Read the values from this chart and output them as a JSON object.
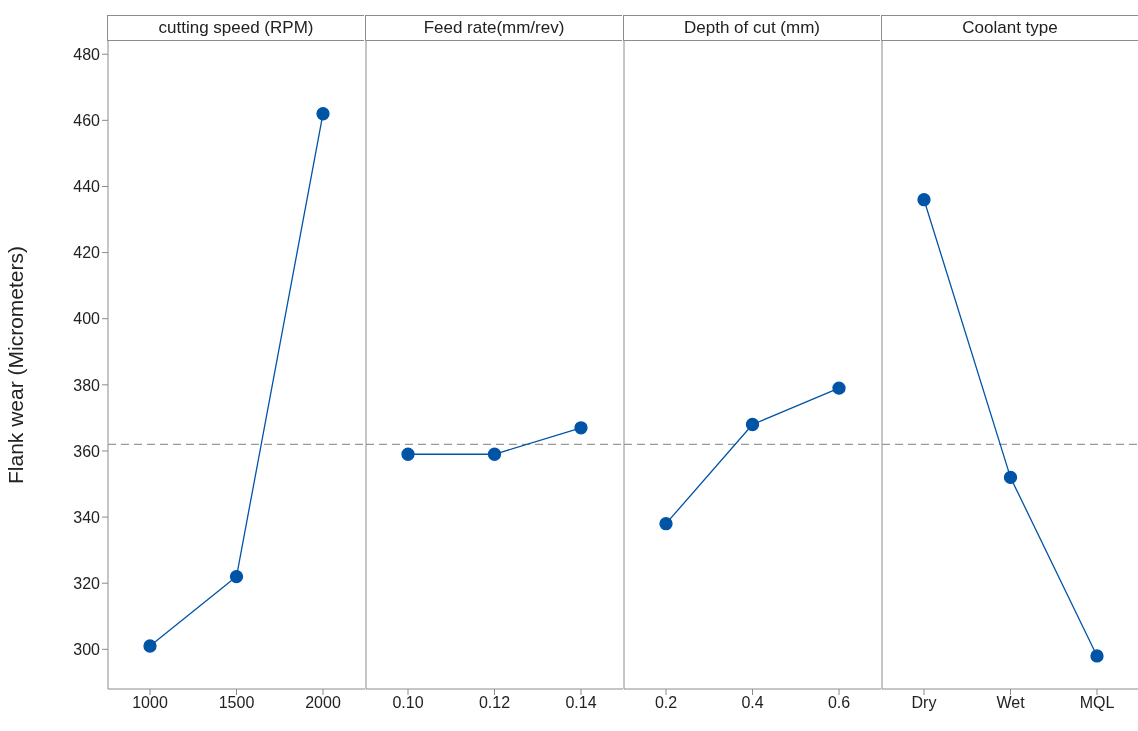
{
  "chart_data": [
    {
      "type": "line",
      "title": "cutting speed (RPM)",
      "ylabel": "Flank wear (Micrometers)",
      "categories": [
        "1000",
        "1500",
        "2000"
      ],
      "values": [
        301,
        322,
        462
      ],
      "color": "#0054a6",
      "ylim": [
        288,
        484
      ],
      "yticks": [
        300,
        320,
        340,
        360,
        380,
        400,
        420,
        440,
        460,
        480
      ],
      "ref_lines": [
        {
          "axis": "y",
          "value": 362,
          "color": "#999999",
          "line_style": "dashed"
        }
      ],
      "marker": "circle",
      "line_style": "solid"
    },
    {
      "type": "line",
      "title": "Feed rate(mm/rev)",
      "categories": [
        "0.10",
        "0.12",
        "0.14"
      ],
      "values": [
        359,
        359,
        367
      ],
      "color": "#0054a6",
      "ylim": [
        288,
        484
      ],
      "yticks": [
        300,
        320,
        340,
        360,
        380,
        400,
        420,
        440,
        460,
        480
      ],
      "ref_lines": [
        {
          "axis": "y",
          "value": 362,
          "color": "#999999",
          "line_style": "dashed"
        }
      ],
      "marker": "circle",
      "line_style": "solid",
      "tick_labels": "x"
    },
    {
      "type": "line",
      "title": "Depth of cut (mm)",
      "categories": [
        "0.2",
        "0.4",
        "0.6"
      ],
      "values": [
        338,
        368,
        379
      ],
      "color": "#0054a6",
      "ylim": [
        288,
        484
      ],
      "yticks": [
        300,
        320,
        340,
        360,
        380,
        400,
        420,
        440,
        460,
        480
      ],
      "ref_lines": [
        {
          "axis": "y",
          "value": 362,
          "color": "#999999",
          "line_style": "dashed"
        }
      ],
      "marker": "circle",
      "line_style": "solid",
      "tick_labels": "x"
    },
    {
      "type": "line",
      "title": "Coolant type",
      "categories": [
        "Dry",
        "Wet",
        "MQL"
      ],
      "values": [
        436,
        352,
        298
      ],
      "color": "#0054a6",
      "ylim": [
        288,
        484
      ],
      "yticks": [
        300,
        320,
        340,
        360,
        380,
        400,
        420,
        440,
        460,
        480
      ],
      "ref_lines": [
        {
          "axis": "y",
          "value": 362,
          "color": "#999999",
          "line_style": "dashed"
        }
      ],
      "marker": "circle",
      "line_style": "solid",
      "tick_labels": "x"
    }
  ]
}
